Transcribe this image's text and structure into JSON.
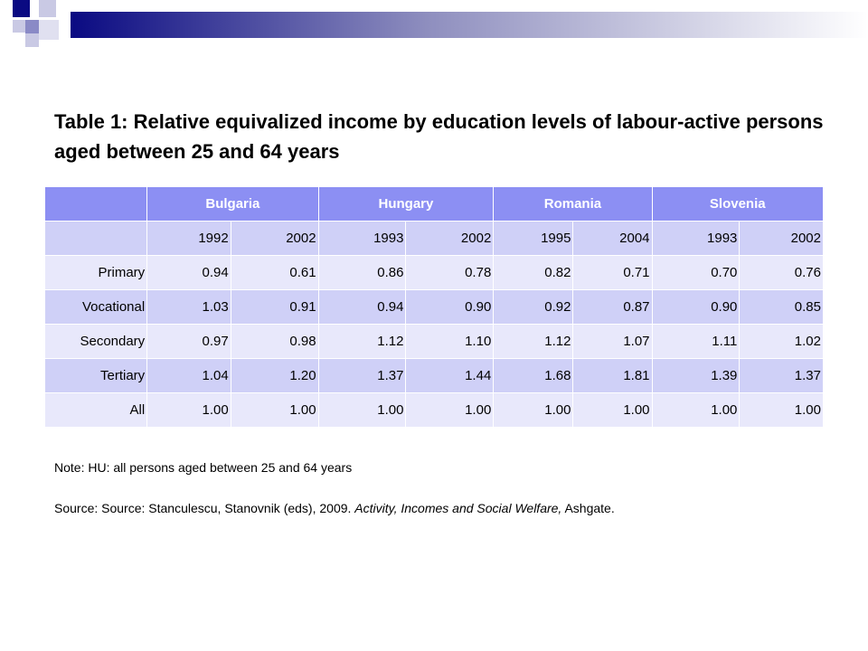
{
  "title": "Table 1: Relative equivalized income by education levels of labour-active persons aged between 25 and 64 years",
  "colors": {
    "header_bg": "#8c8ff3",
    "row_dark": "#cfd0f7",
    "row_light": "#e8e8fb"
  },
  "table": {
    "countries": [
      "Bulgaria",
      "Hungary",
      "Romania",
      "Slovenia"
    ],
    "years": [
      "1992",
      "2002",
      "1993",
      "2002",
      "1995",
      "2004",
      "1993",
      "2002"
    ],
    "rows": [
      {
        "label": "Primary",
        "values": [
          "0.94",
          "0.61",
          "0.86",
          "0.78",
          "0.82",
          "0.71",
          "0.70",
          "0.76"
        ]
      },
      {
        "label": "Vocational",
        "values": [
          "1.03",
          "0.91",
          "0.94",
          "0.90",
          "0.92",
          "0.87",
          "0.90",
          "0.85"
        ]
      },
      {
        "label": "Secondary",
        "values": [
          "0.97",
          "0.98",
          "1.12",
          "1.10",
          "1.12",
          "1.07",
          "1.11",
          "1.02"
        ]
      },
      {
        "label": "Tertiary",
        "values": [
          "1.04",
          "1.20",
          "1.37",
          "1.44",
          "1.68",
          "1.81",
          "1.39",
          "1.37"
        ]
      },
      {
        "label": "All",
        "values": [
          "1.00",
          "1.00",
          "1.00",
          "1.00",
          "1.00",
          "1.00",
          "1.00",
          "1.00"
        ]
      }
    ]
  },
  "note": "Note: HU: all persons aged between 25 and 64 years",
  "source": {
    "prefix": "Source: Source: Stanculescu, Stanovnik (eds), 2009. ",
    "book_title": "Activity, Incomes and Social Welfare,",
    "suffix": " Ashgate."
  }
}
